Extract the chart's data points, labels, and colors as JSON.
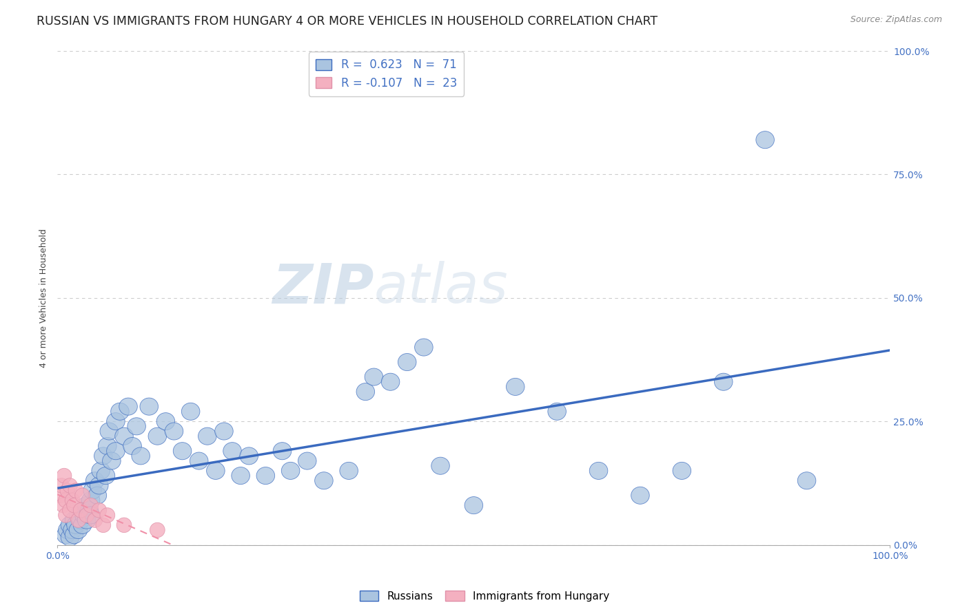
{
  "title": "RUSSIAN VS IMMIGRANTS FROM HUNGARY 4 OR MORE VEHICLES IN HOUSEHOLD CORRELATION CHART",
  "source": "Source: ZipAtlas.com",
  "ylabel": "4 or more Vehicles in Household",
  "watermark_zip": "ZIP",
  "watermark_atlas": "atlas",
  "legend_label1": "Russians",
  "legend_label2": "Immigrants from Hungary",
  "R1": 0.623,
  "N1": 71,
  "R2": -0.107,
  "N2": 23,
  "color_russian": "#aac4e0",
  "color_hungary": "#f4b0c0",
  "color_line1": "#3a6abf",
  "color_line2": "#f090a8",
  "xlim": [
    0,
    100
  ],
  "ylim": [
    0,
    100
  ],
  "xtick_labels": [
    "0.0%",
    "100.0%"
  ],
  "ytick_labels": [
    "0.0%",
    "25.0%",
    "50.0%",
    "75.0%",
    "100.0%"
  ],
  "ytick_values": [
    0,
    25,
    50,
    75,
    100
  ],
  "russians_x": [
    1.0,
    1.2,
    1.5,
    1.5,
    1.8,
    2.0,
    2.0,
    2.2,
    2.5,
    2.5,
    2.8,
    3.0,
    3.0,
    3.2,
    3.5,
    3.5,
    3.8,
    4.0,
    4.0,
    4.2,
    4.5,
    4.8,
    5.0,
    5.2,
    5.5,
    5.8,
    6.0,
    6.2,
    6.5,
    7.0,
    7.0,
    7.5,
    8.0,
    8.5,
    9.0,
    9.5,
    10.0,
    11.0,
    12.0,
    13.0,
    14.0,
    15.0,
    16.0,
    17.0,
    18.0,
    19.0,
    20.0,
    21.0,
    22.0,
    23.0,
    25.0,
    27.0,
    28.0,
    30.0,
    32.0,
    35.0,
    37.0,
    38.0,
    40.0,
    42.0,
    44.0,
    46.0,
    50.0,
    55.0,
    60.0,
    65.0,
    70.0,
    75.0,
    80.0,
    85.0,
    90.0
  ],
  "russians_y": [
    2.0,
    3.0,
    4.0,
    1.5,
    3.0,
    5.0,
    2.0,
    4.0,
    6.0,
    3.0,
    5.0,
    7.0,
    4.0,
    6.0,
    8.0,
    5.0,
    7.0,
    9.0,
    6.0,
    11.0,
    13.0,
    10.0,
    12.0,
    15.0,
    18.0,
    14.0,
    20.0,
    23.0,
    17.0,
    25.0,
    19.0,
    27.0,
    22.0,
    28.0,
    20.0,
    24.0,
    18.0,
    28.0,
    22.0,
    25.0,
    23.0,
    19.0,
    27.0,
    17.0,
    22.0,
    15.0,
    23.0,
    19.0,
    14.0,
    18.0,
    14.0,
    19.0,
    15.0,
    17.0,
    13.0,
    15.0,
    31.0,
    34.0,
    33.0,
    37.0,
    40.0,
    16.0,
    8.0,
    32.0,
    27.0,
    15.0,
    10.0,
    15.0,
    33.0,
    82.0,
    13.0
  ],
  "hungary_x": [
    0.3,
    0.5,
    0.7,
    0.8,
    1.0,
    1.0,
    1.2,
    1.5,
    1.5,
    1.8,
    2.0,
    2.2,
    2.5,
    2.8,
    3.0,
    3.5,
    4.0,
    4.5,
    5.0,
    5.5,
    6.0,
    8.0,
    12.0
  ],
  "hungary_y": [
    10.0,
    12.0,
    8.0,
    14.0,
    6.0,
    9.0,
    11.0,
    7.0,
    12.0,
    9.0,
    8.0,
    11.0,
    5.0,
    7.0,
    10.0,
    6.0,
    8.0,
    5.0,
    7.0,
    4.0,
    6.0,
    4.0,
    3.0
  ],
  "background_color": "#ffffff",
  "grid_color": "#cccccc",
  "tick_color": "#4472c4",
  "title_fontsize": 12.5,
  "axis_label_fontsize": 9,
  "tick_fontsize": 10,
  "legend_fontsize": 12
}
